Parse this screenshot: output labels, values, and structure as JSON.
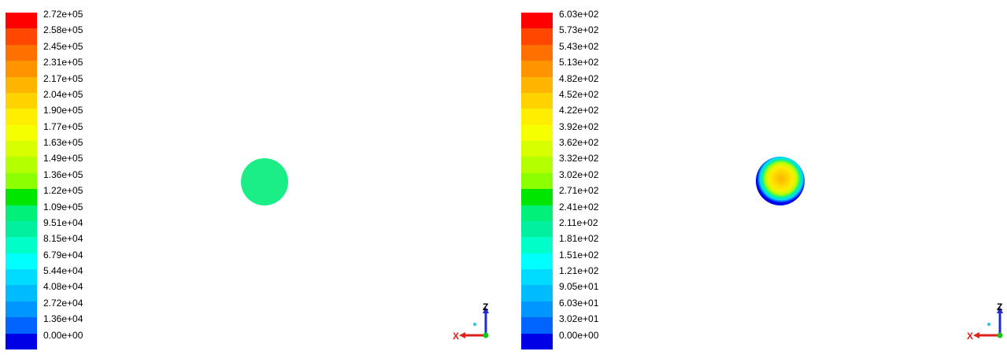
{
  "panels": [
    {
      "legend_labels": [
        "2.72e+05",
        "2.58e+05",
        "2.45e+05",
        "2.31e+05",
        "2.17e+05",
        "2.04e+05",
        "1.90e+05",
        "1.77e+05",
        "1.63e+05",
        "1.49e+05",
        "1.36e+05",
        "1.22e+05",
        "1.09e+05",
        "9.51e+04",
        "8.15e+04",
        "6.79e+04",
        "5.44e+04",
        "4.08e+04",
        "2.72e+04",
        "1.36e+04",
        "0.00e+00"
      ],
      "axis_labels": {
        "z": "Z",
        "x": "X"
      }
    },
    {
      "legend_labels": [
        "6.03e+02",
        "5.73e+02",
        "5.43e+02",
        "5.13e+02",
        "4.82e+02",
        "4.52e+02",
        "4.22e+02",
        "3.92e+02",
        "3.62e+02",
        "3.32e+02",
        "3.02e+02",
        "2.71e+02",
        "2.41e+02",
        "2.11e+02",
        "1.81e+02",
        "1.51e+02",
        "1.21e+02",
        "9.05e+01",
        "6.03e+01",
        "3.02e+01",
        "0.00e+00"
      ],
      "axis_labels": {
        "z": "Z",
        "x": "X"
      }
    }
  ],
  "colors": {
    "colormap": [
      "#ff0000",
      "#ff4700",
      "#ff7000",
      "#ff9400",
      "#ffb400",
      "#ffd200",
      "#ffee00",
      "#f5ff00",
      "#d8ff00",
      "#b4ff00",
      "#8cff00",
      "#00e600",
      "#00f07a",
      "#00f0a0",
      "#00ffc8",
      "#00ffff",
      "#00dcff",
      "#00bcff",
      "#0096ff",
      "#0064ff",
      "#0000e6"
    ]
  },
  "chart_data": [
    {
      "type": "heatmap",
      "colorbar_ticks": [
        272000.0,
        258000.0,
        245000.0,
        231000.0,
        217000.0,
        204000.0,
        190000.0,
        177000.0,
        163000.0,
        149000.0,
        136000.0,
        122000.0,
        109000.0,
        95100.0,
        81500.0,
        67900.0,
        54400.0,
        40800.0,
        27200.0,
        13600.0,
        0
      ],
      "range": [
        0,
        272000.0
      ],
      "field": "uniform disk",
      "disk_value": 109000.0
    },
    {
      "type": "heatmap",
      "colorbar_ticks": [
        603,
        573,
        543,
        513,
        482,
        452,
        422,
        392,
        362,
        332,
        302,
        271,
        241,
        211,
        181,
        151,
        121,
        90.5,
        60.3,
        30.2,
        0
      ],
      "range": [
        0,
        603
      ],
      "field": "radial disk",
      "center_value": 482,
      "edge_value": 30.2
    }
  ]
}
